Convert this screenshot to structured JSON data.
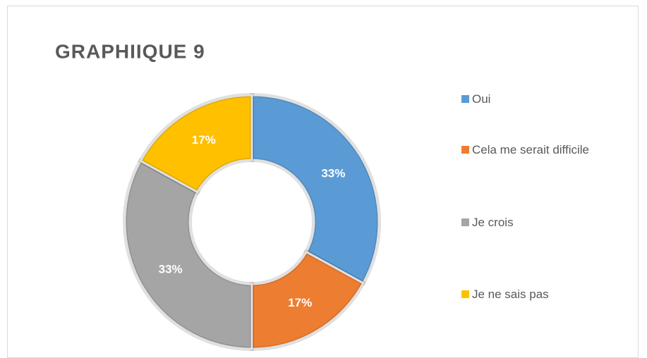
{
  "chart_data": {
    "type": "doughnut",
    "title": "GRAPHIIQUE 9",
    "categories": [
      "Oui",
      "Cela me serait difficile",
      "Je crois",
      "Je ne sais pas"
    ],
    "values": [
      33,
      17,
      33,
      17
    ],
    "value_labels": [
      "33%",
      "17%",
      "33%",
      "17%"
    ],
    "colors": [
      "#5b9bd5",
      "#ed7d31",
      "#a5a5a5",
      "#ffc000"
    ],
    "legend": "right"
  }
}
